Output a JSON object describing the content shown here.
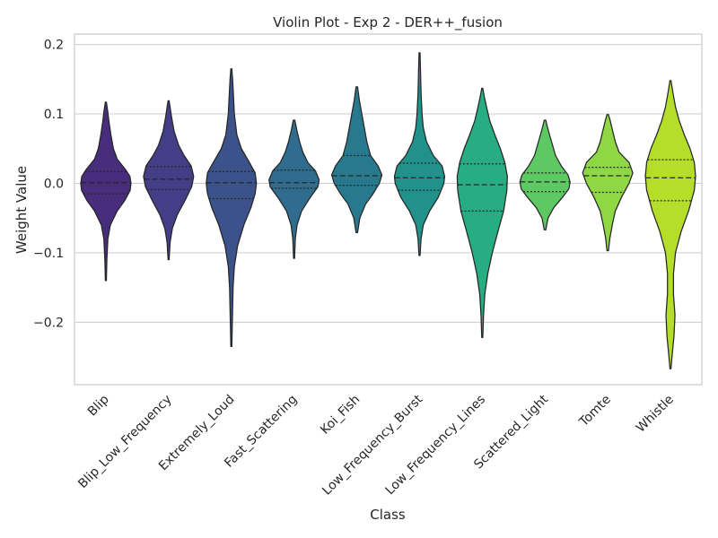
{
  "chart_data": {
    "type": "violin",
    "title": "Violin Plot - Exp 2 - DER++_fusion",
    "xlabel": "Class",
    "ylabel": "Weight Value",
    "ylim": [
      -0.29,
      0.215
    ],
    "yticks": [
      -0.2,
      -0.1,
      0.0,
      0.1,
      0.2
    ],
    "ytick_labels": [
      "−0.2",
      "−0.1",
      "0.0",
      "0.1",
      "0.2"
    ],
    "grid": true,
    "inner": "quartile",
    "categories": [
      "Blip",
      "Blip_Low_Frequency",
      "Extremely_Loud",
      "Fast_Scattering",
      "Koi_Fish",
      "Low_Frequency_Burst",
      "Low_Frequency_Lines",
      "Scattered_Light",
      "Tomte",
      "Whistle"
    ],
    "colors": [
      "#472d7b",
      "#433e85",
      "#3b528b",
      "#2f6c8e",
      "#29798e",
      "#21918c",
      "#27ad81",
      "#5ec962",
      "#8fd744",
      "#b5de2b"
    ],
    "violins": [
      {
        "min": -0.14,
        "max": 0.117,
        "q1": -0.015,
        "median": 0.001,
        "q3": 0.017,
        "density": [
          [
            -0.14,
            0.02
          ],
          [
            -0.11,
            0.04
          ],
          [
            -0.08,
            0.08
          ],
          [
            -0.06,
            0.18
          ],
          [
            -0.04,
            0.45
          ],
          [
            -0.025,
            0.75
          ],
          [
            -0.01,
            0.97
          ],
          [
            0.0,
            1.0
          ],
          [
            0.01,
            0.96
          ],
          [
            0.02,
            0.78
          ],
          [
            0.035,
            0.45
          ],
          [
            0.05,
            0.3
          ],
          [
            0.07,
            0.2
          ],
          [
            0.09,
            0.12
          ],
          [
            0.105,
            0.07
          ],
          [
            0.117,
            0.02
          ]
        ]
      },
      {
        "min": -0.11,
        "max": 0.119,
        "q1": -0.009,
        "median": 0.006,
        "q3": 0.024,
        "density": [
          [
            -0.11,
            0.02
          ],
          [
            -0.085,
            0.06
          ],
          [
            -0.065,
            0.15
          ],
          [
            -0.045,
            0.35
          ],
          [
            -0.025,
            0.65
          ],
          [
            -0.005,
            0.92
          ],
          [
            0.01,
            1.0
          ],
          [
            0.025,
            0.9
          ],
          [
            0.04,
            0.62
          ],
          [
            0.055,
            0.4
          ],
          [
            0.075,
            0.22
          ],
          [
            0.095,
            0.12
          ],
          [
            0.11,
            0.06
          ],
          [
            0.119,
            0.02
          ]
        ]
      },
      {
        "min": -0.235,
        "max": 0.165,
        "q1": -0.022,
        "median": 0.001,
        "q3": 0.017,
        "density": [
          [
            -0.235,
            0.02
          ],
          [
            -0.2,
            0.04
          ],
          [
            -0.15,
            0.07
          ],
          [
            -0.12,
            0.12
          ],
          [
            -0.09,
            0.25
          ],
          [
            -0.06,
            0.5
          ],
          [
            -0.035,
            0.78
          ],
          [
            -0.015,
            0.95
          ],
          [
            0.0,
            1.0
          ],
          [
            0.015,
            0.95
          ],
          [
            0.03,
            0.72
          ],
          [
            0.05,
            0.4
          ],
          [
            0.07,
            0.22
          ],
          [
            0.1,
            0.12
          ],
          [
            0.13,
            0.08
          ],
          [
            0.15,
            0.05
          ],
          [
            0.165,
            0.02
          ]
        ]
      },
      {
        "min": -0.108,
        "max": 0.091,
        "q1": -0.007,
        "median": 0.001,
        "q3": 0.019,
        "density": [
          [
            -0.108,
            0.02
          ],
          [
            -0.08,
            0.05
          ],
          [
            -0.06,
            0.12
          ],
          [
            -0.04,
            0.3
          ],
          [
            -0.02,
            0.65
          ],
          [
            -0.005,
            0.95
          ],
          [
            0.005,
            1.0
          ],
          [
            0.018,
            0.85
          ],
          [
            0.03,
            0.55
          ],
          [
            0.045,
            0.35
          ],
          [
            0.06,
            0.22
          ],
          [
            0.075,
            0.12
          ],
          [
            0.091,
            0.03
          ]
        ]
      },
      {
        "min": -0.071,
        "max": 0.139,
        "q1": -0.003,
        "median": 0.011,
        "q3": 0.04,
        "density": [
          [
            -0.071,
            0.03
          ],
          [
            -0.05,
            0.12
          ],
          [
            -0.03,
            0.35
          ],
          [
            -0.015,
            0.65
          ],
          [
            0.0,
            0.9
          ],
          [
            0.012,
            1.0
          ],
          [
            0.025,
            0.85
          ],
          [
            0.04,
            0.55
          ],
          [
            0.06,
            0.4
          ],
          [
            0.08,
            0.3
          ],
          [
            0.1,
            0.2
          ],
          [
            0.12,
            0.1
          ],
          [
            0.139,
            0.03
          ]
        ]
      },
      {
        "min": -0.104,
        "max": 0.188,
        "q1": -0.01,
        "median": 0.008,
        "q3": 0.029,
        "density": [
          [
            -0.104,
            0.02
          ],
          [
            -0.08,
            0.06
          ],
          [
            -0.06,
            0.15
          ],
          [
            -0.04,
            0.4
          ],
          [
            -0.02,
            0.75
          ],
          [
            0.0,
            0.97
          ],
          [
            0.01,
            1.0
          ],
          [
            0.025,
            0.9
          ],
          [
            0.04,
            0.55
          ],
          [
            0.06,
            0.28
          ],
          [
            0.08,
            0.15
          ],
          [
            0.1,
            0.1
          ],
          [
            0.13,
            0.06
          ],
          [
            0.16,
            0.04
          ],
          [
            0.188,
            0.02
          ]
        ]
      },
      {
        "min": -0.222,
        "max": 0.137,
        "q1": -0.04,
        "median": -0.002,
        "q3": 0.028,
        "density": [
          [
            -0.222,
            0.02
          ],
          [
            -0.19,
            0.05
          ],
          [
            -0.16,
            0.1
          ],
          [
            -0.13,
            0.22
          ],
          [
            -0.1,
            0.4
          ],
          [
            -0.07,
            0.62
          ],
          [
            -0.04,
            0.85
          ],
          [
            -0.01,
            0.98
          ],
          [
            0.01,
            1.0
          ],
          [
            0.03,
            0.9
          ],
          [
            0.05,
            0.72
          ],
          [
            0.07,
            0.5
          ],
          [
            0.09,
            0.3
          ],
          [
            0.11,
            0.17
          ],
          [
            0.125,
            0.08
          ],
          [
            0.137,
            0.02
          ]
        ]
      },
      {
        "min": -0.067,
        "max": 0.091,
        "q1": -0.012,
        "median": 0.002,
        "q3": 0.015,
        "density": [
          [
            -0.067,
            0.03
          ],
          [
            -0.05,
            0.12
          ],
          [
            -0.035,
            0.35
          ],
          [
            -0.02,
            0.7
          ],
          [
            -0.008,
            0.95
          ],
          [
            0.002,
            1.0
          ],
          [
            0.012,
            0.92
          ],
          [
            0.025,
            0.65
          ],
          [
            0.04,
            0.42
          ],
          [
            0.055,
            0.3
          ],
          [
            0.07,
            0.18
          ],
          [
            0.082,
            0.09
          ],
          [
            0.091,
            0.03
          ]
        ]
      },
      {
        "min": -0.097,
        "max": 0.099,
        "q1": -0.013,
        "median": 0.011,
        "q3": 0.023,
        "density": [
          [
            -0.097,
            0.03
          ],
          [
            -0.08,
            0.08
          ],
          [
            -0.06,
            0.18
          ],
          [
            -0.04,
            0.3
          ],
          [
            -0.02,
            0.55
          ],
          [
            0.0,
            0.85
          ],
          [
            0.015,
            1.0
          ],
          [
            0.03,
            0.85
          ],
          [
            0.045,
            0.45
          ],
          [
            0.06,
            0.3
          ],
          [
            0.075,
            0.2
          ],
          [
            0.09,
            0.1
          ],
          [
            0.099,
            0.03
          ]
        ]
      },
      {
        "min": -0.267,
        "max": 0.148,
        "q1": -0.025,
        "median": 0.008,
        "q3": 0.034,
        "density": [
          [
            -0.267,
            0.02
          ],
          [
            -0.25,
            0.06
          ],
          [
            -0.22,
            0.14
          ],
          [
            -0.19,
            0.18
          ],
          [
            -0.16,
            0.12
          ],
          [
            -0.13,
            0.12
          ],
          [
            -0.1,
            0.2
          ],
          [
            -0.07,
            0.42
          ],
          [
            -0.04,
            0.72
          ],
          [
            -0.01,
            0.95
          ],
          [
            0.01,
            1.0
          ],
          [
            0.03,
            0.95
          ],
          [
            0.05,
            0.78
          ],
          [
            0.07,
            0.55
          ],
          [
            0.09,
            0.35
          ],
          [
            0.11,
            0.2
          ],
          [
            0.13,
            0.1
          ],
          [
            0.148,
            0.02
          ]
        ]
      }
    ]
  }
}
